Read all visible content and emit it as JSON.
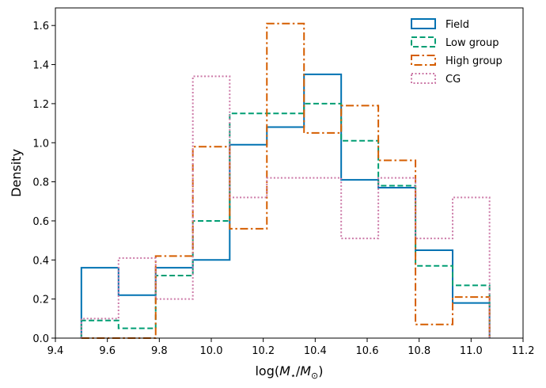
{
  "chart_data": {
    "type": "histogram",
    "title": "",
    "xlabel": "log(M⋆/M⊙)",
    "xlabel_parts": {
      "prefix": "log(",
      "m1": "M",
      "sub1": "⋆",
      "slash": "/",
      "m2": "M",
      "sub2": "⊙",
      "suffix": ")"
    },
    "ylabel": "Density",
    "xlim": [
      9.4,
      11.2
    ],
    "ylim": [
      0.0,
      1.69
    ],
    "xticks": [
      9.4,
      9.6,
      9.8,
      10.0,
      10.2,
      10.4,
      10.6,
      10.8,
      11.0,
      11.2
    ],
    "xtick_labels": [
      "9.4",
      "9.6",
      "9.8",
      "10.0",
      "10.2",
      "10.4",
      "10.6",
      "10.8",
      "11.0",
      "11.2"
    ],
    "yticks": [
      0.0,
      0.2,
      0.4,
      0.6,
      0.8,
      1.0,
      1.2,
      1.4,
      1.6
    ],
    "ytick_labels": [
      "0.0",
      "0.2",
      "0.4",
      "0.6",
      "0.8",
      "1.0",
      "1.2",
      "1.4",
      "1.6"
    ],
    "bin_edges": [
      9.5,
      9.643,
      9.786,
      9.929,
      10.071,
      10.214,
      10.357,
      10.5,
      10.643,
      10.786,
      10.929,
      11.071
    ],
    "legend_position": "upper-right",
    "series": [
      {
        "name": "Field",
        "color": "#0072b2",
        "dash": "solid",
        "values": [
          0.36,
          0.22,
          0.36,
          0.4,
          0.99,
          1.08,
          1.35,
          0.81,
          0.77,
          0.45,
          0.18
        ]
      },
      {
        "name": "Low group",
        "color": "#009e73",
        "dash": "dashed",
        "values": [
          0.09,
          0.05,
          0.32,
          0.6,
          1.15,
          1.15,
          1.2,
          1.01,
          0.78,
          0.37,
          0.27
        ]
      },
      {
        "name": "High group",
        "color": "#d55e00",
        "dash": "dashdot",
        "values": [
          0.0,
          0.0,
          0.42,
          0.98,
          0.56,
          1.61,
          1.05,
          1.19,
          0.91,
          0.07,
          0.21
        ]
      },
      {
        "name": "CG",
        "color": "#cc79a7",
        "dash": "dotted",
        "values": [
          0.1,
          0.41,
          0.2,
          1.34,
          0.72,
          0.82,
          0.82,
          0.51,
          0.82,
          0.51,
          0.72
        ]
      }
    ]
  }
}
